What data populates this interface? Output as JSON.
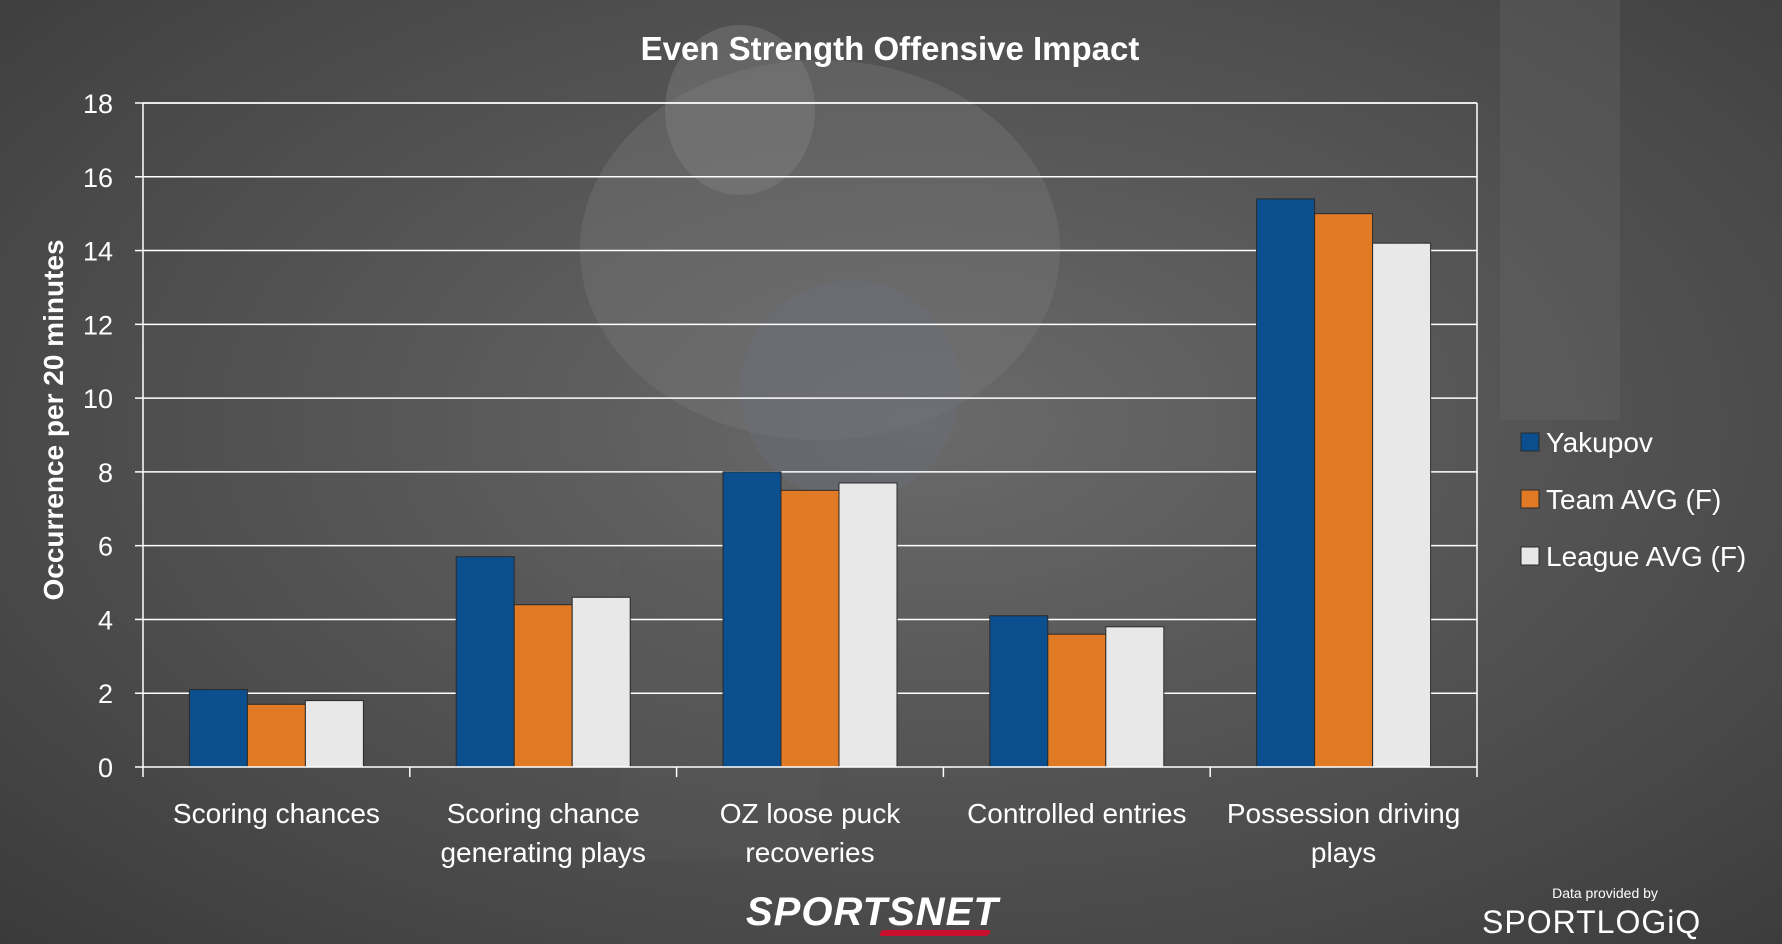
{
  "chart_data": {
    "type": "bar",
    "title": "Even Strength Offensive Impact",
    "xlabel": "",
    "ylabel": "Occurrence per 20 minutes",
    "ylim": [
      0,
      18
    ],
    "yticks": [
      0,
      2,
      4,
      6,
      8,
      10,
      12,
      14,
      16,
      18
    ],
    "grid": true,
    "legend_position": "right",
    "categories": [
      [
        "Scoring chances"
      ],
      [
        "Scoring chance",
        "generating plays"
      ],
      [
        "OZ loose puck",
        "recoveries"
      ],
      [
        "Controlled entries"
      ],
      [
        "Possession driving",
        "plays"
      ]
    ],
    "series": [
      {
        "name": "Yakupov",
        "color": "#0b4f8f",
        "values": [
          2.1,
          5.7,
          8.0,
          4.1,
          15.4
        ]
      },
      {
        "name": "Team AVG (F)",
        "color": "#e07a24",
        "values": [
          1.7,
          4.4,
          7.5,
          3.6,
          15.0
        ]
      },
      {
        "name": "League AVG (F)",
        "color": "#e8e8e8",
        "values": [
          1.8,
          4.6,
          7.7,
          3.8,
          14.2
        ]
      }
    ]
  },
  "footer": {
    "credit": "Data provided by",
    "brand": "SPORTLOGiQ",
    "network": "SPORTSNET"
  }
}
